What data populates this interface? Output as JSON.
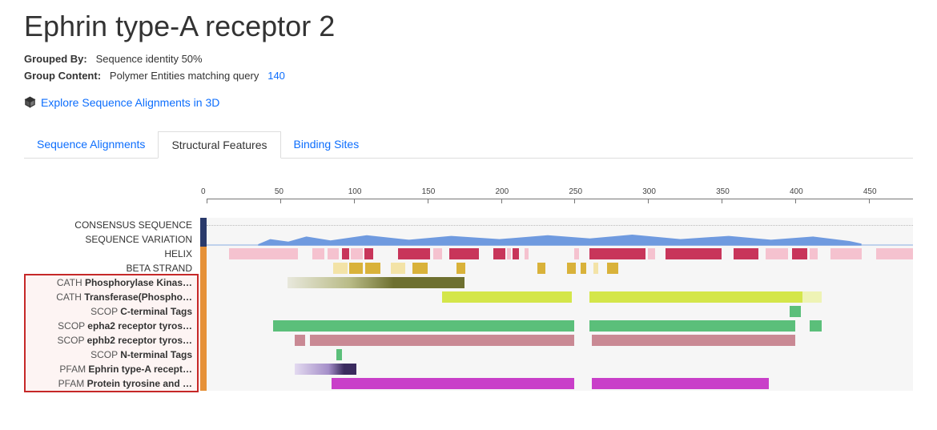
{
  "header": {
    "title": "Ephrin type-A receptor 2",
    "grouped_by_label": "Grouped By:",
    "grouped_by_value": "Sequence identity 50%",
    "group_content_label": "Group Content:",
    "group_content_value": "Polymer Entities matching query",
    "group_content_count": "140",
    "explore_label": "Explore Sequence Alignments in 3D"
  },
  "tabs": [
    {
      "label": "Sequence Alignments",
      "active": false
    },
    {
      "label": "Structural Features",
      "active": true
    },
    {
      "label": "Binding Sites",
      "active": false
    }
  ],
  "axis": {
    "min": 0,
    "max": 480,
    "step": 50
  },
  "colors": {
    "tab_navy": "#2a3a6b",
    "tab_orange": "#e69138",
    "helix_light": "#f5c2cf",
    "helix_dark": "#c8355a",
    "beta_light": "#f3e3a7",
    "beta_dark": "#d9b23a",
    "olive_light": "#d7d9a8",
    "olive_dark": "#6e7030",
    "lime": "#d4e64a",
    "lime_fade": "#eef3b5",
    "green": "#5bbf7a",
    "mauve": "#c98994",
    "purple_light": "#cfc0e3",
    "purple_dark": "#3a2a5e",
    "magenta": "#c93fc9",
    "variation_blue": "#6f9adf",
    "highlight_border": "#c62828",
    "highlight_bg": "#fdf4f3"
  },
  "tracks": [
    {
      "id": "consensus",
      "label_cat": "",
      "label_name": "CONSENSUS SEQUENCE",
      "tab_color": "#2a3a6b",
      "highlighted": false,
      "dotted": true,
      "segments": []
    },
    {
      "id": "variation",
      "label_cat": "",
      "label_name": "SEQUENCE VARIATION",
      "tab_color": "#2a3a6b",
      "highlighted": false,
      "variation": {
        "start": 35,
        "end": 445,
        "color": "#6f9adf"
      }
    },
    {
      "id": "helix",
      "label_cat": "",
      "label_name": "HELIX",
      "tab_color": "#e69138",
      "highlighted": false,
      "segments": [
        {
          "start": 15,
          "end": 62,
          "color": "#f5c2cf"
        },
        {
          "start": 72,
          "end": 80,
          "color": "#f5c2cf"
        },
        {
          "start": 82,
          "end": 90,
          "color": "#f5c2cf"
        },
        {
          "start": 92,
          "end": 97,
          "color": "#c8355a"
        },
        {
          "start": 98,
          "end": 106,
          "color": "#f5c2cf"
        },
        {
          "start": 107,
          "end": 113,
          "color": "#c8355a"
        },
        {
          "start": 130,
          "end": 152,
          "color": "#c8355a"
        },
        {
          "start": 154,
          "end": 160,
          "color": "#f5c2cf"
        },
        {
          "start": 165,
          "end": 185,
          "color": "#c8355a"
        },
        {
          "start": 195,
          "end": 203,
          "color": "#c8355a"
        },
        {
          "start": 204,
          "end": 207,
          "color": "#f5c2cf"
        },
        {
          "start": 208,
          "end": 212,
          "color": "#c8355a"
        },
        {
          "start": 216,
          "end": 219,
          "color": "#f5c2cf"
        },
        {
          "start": 250,
          "end": 253,
          "color": "#f5c2cf"
        },
        {
          "start": 260,
          "end": 298,
          "color": "#c8355a"
        },
        {
          "start": 300,
          "end": 305,
          "color": "#f5c2cf"
        },
        {
          "start": 312,
          "end": 350,
          "color": "#c8355a"
        },
        {
          "start": 358,
          "end": 375,
          "color": "#c8355a"
        },
        {
          "start": 380,
          "end": 395,
          "color": "#f5c2cf"
        },
        {
          "start": 398,
          "end": 408,
          "color": "#c8355a"
        },
        {
          "start": 410,
          "end": 415,
          "color": "#f5c2cf"
        },
        {
          "start": 424,
          "end": 445,
          "color": "#f5c2cf"
        },
        {
          "start": 455,
          "end": 480,
          "color": "#f5c2cf"
        }
      ]
    },
    {
      "id": "beta",
      "label_cat": "",
      "label_name": "BETA STRAND",
      "tab_color": "#e69138",
      "highlighted": false,
      "segments": [
        {
          "start": 86,
          "end": 96,
          "color": "#f3e3a7"
        },
        {
          "start": 97,
          "end": 106,
          "color": "#d9b23a"
        },
        {
          "start": 108,
          "end": 118,
          "color": "#d9b23a"
        },
        {
          "start": 125,
          "end": 135,
          "color": "#f3e3a7"
        },
        {
          "start": 140,
          "end": 150,
          "color": "#d9b23a"
        },
        {
          "start": 170,
          "end": 176,
          "color": "#d9b23a"
        },
        {
          "start": 225,
          "end": 230,
          "color": "#d9b23a"
        },
        {
          "start": 245,
          "end": 251,
          "color": "#d9b23a"
        },
        {
          "start": 254,
          "end": 258,
          "color": "#d9b23a"
        },
        {
          "start": 263,
          "end": 266,
          "color": "#f3e3a7"
        },
        {
          "start": 272,
          "end": 280,
          "color": "#d9b23a"
        }
      ]
    },
    {
      "id": "cath1",
      "label_cat": "CATH",
      "label_name": "Phosphorylase Kinas…",
      "tab_color": "#e69138",
      "highlighted": true,
      "gradient": {
        "start": 55,
        "end": 175,
        "stops": [
          {
            "p": 0,
            "c": "#e8e8dc"
          },
          {
            "p": 35,
            "c": "#b9bb87"
          },
          {
            "p": 60,
            "c": "#6e7030"
          },
          {
            "p": 100,
            "c": "#6e7030"
          }
        ]
      }
    },
    {
      "id": "cath2",
      "label_cat": "CATH",
      "label_name": "Transferase(Phospho…",
      "tab_color": "#e69138",
      "highlighted": true,
      "segments": [
        {
          "start": 160,
          "end": 248,
          "color": "#d4e64a"
        },
        {
          "start": 260,
          "end": 405,
          "color": "#d4e64a"
        },
        {
          "start": 405,
          "end": 418,
          "color": "#eef3b5"
        }
      ]
    },
    {
      "id": "scop_c",
      "label_cat": "SCOP",
      "label_name": "C-terminal Tags",
      "tab_color": "#e69138",
      "highlighted": true,
      "segments": [
        {
          "start": 396,
          "end": 404,
          "color": "#5bbf7a"
        }
      ]
    },
    {
      "id": "scop_epha2",
      "label_cat": "SCOP",
      "label_name": "epha2 receptor tyros…",
      "tab_color": "#e69138",
      "highlighted": true,
      "segments": [
        {
          "start": 45,
          "end": 250,
          "color": "#5bbf7a"
        },
        {
          "start": 260,
          "end": 400,
          "color": "#5bbf7a"
        },
        {
          "start": 410,
          "end": 418,
          "color": "#5bbf7a"
        }
      ]
    },
    {
      "id": "scop_ephb2",
      "label_cat": "SCOP",
      "label_name": "ephb2 receptor tyros…",
      "tab_color": "#e69138",
      "highlighted": true,
      "segments": [
        {
          "start": 60,
          "end": 67,
          "color": "#c98994"
        },
        {
          "start": 70,
          "end": 250,
          "color": "#c98994"
        },
        {
          "start": 262,
          "end": 400,
          "color": "#c98994"
        }
      ]
    },
    {
      "id": "scop_n",
      "label_cat": "SCOP",
      "label_name": "N-terminal Tags",
      "tab_color": "#e69138",
      "highlighted": true,
      "segments": [
        {
          "start": 88,
          "end": 92,
          "color": "#5bbf7a"
        }
      ]
    },
    {
      "id": "pfam1",
      "label_cat": "PFAM",
      "label_name": "Ephrin type-A recept…",
      "tab_color": "#e69138",
      "highlighted": true,
      "gradient": {
        "start": 60,
        "end": 102,
        "stops": [
          {
            "p": 0,
            "c": "#e3daf0"
          },
          {
            "p": 55,
            "c": "#a48ec8"
          },
          {
            "p": 80,
            "c": "#3a2a5e"
          },
          {
            "p": 100,
            "c": "#3a2a5e"
          }
        ]
      }
    },
    {
      "id": "pfam2",
      "label_cat": "PFAM",
      "label_name": "Protein tyrosine and …",
      "tab_color": "#e69138",
      "highlighted": true,
      "segments": [
        {
          "start": 85,
          "end": 250,
          "color": "#c93fc9"
        },
        {
          "start": 262,
          "end": 382,
          "color": "#c93fc9"
        }
      ]
    }
  ]
}
